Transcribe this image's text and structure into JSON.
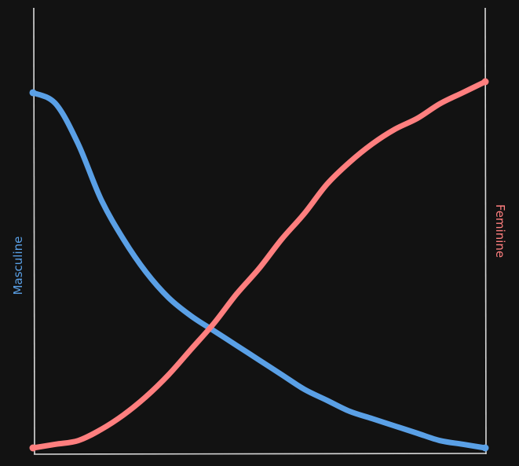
{
  "chart_data": {
    "type": "line",
    "title": "",
    "xlabel": "",
    "ylabel": "",
    "left_axis_label": "Masculine",
    "right_axis_label": "Feminine",
    "x": [
      0,
      0.05,
      0.1,
      0.15,
      0.2,
      0.25,
      0.3,
      0.35,
      0.4,
      0.45,
      0.5,
      0.55,
      0.6,
      0.65,
      0.7,
      0.75,
      0.8,
      0.85,
      0.9,
      0.95,
      1.0
    ],
    "xlim": [
      0,
      1
    ],
    "ylim": [
      0,
      1
    ],
    "grid": false,
    "series": [
      {
        "name": "Masculine",
        "color": "#5aa0e6",
        "values": [
          0.97,
          0.94,
          0.83,
          0.68,
          0.57,
          0.48,
          0.41,
          0.36,
          0.32,
          0.28,
          0.24,
          0.2,
          0.16,
          0.13,
          0.1,
          0.08,
          0.06,
          0.04,
          0.02,
          0.01,
          0.0
        ]
      },
      {
        "name": "Feminine",
        "color": "#ff7f7f",
        "values": [
          0.0,
          0.01,
          0.02,
          0.05,
          0.09,
          0.14,
          0.2,
          0.27,
          0.34,
          0.42,
          0.49,
          0.57,
          0.64,
          0.72,
          0.78,
          0.83,
          0.87,
          0.9,
          0.94,
          0.97,
          1.0
        ]
      }
    ],
    "axis_color": "#d9d9d9",
    "background": "#121212"
  }
}
